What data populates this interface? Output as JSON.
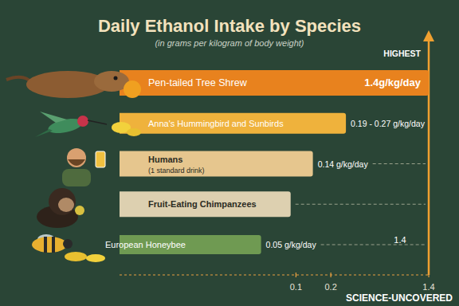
{
  "chart_data": {
    "type": "bar",
    "orientation": "horizontal",
    "title": "Daily Ethanol Intake by Species",
    "subtitle": "(in grams per kilogram of body weight)",
    "categories": [
      "Pen-tailed Tree Shrew",
      "Anna's Hummingbird and Sunbirds",
      "Humans",
      "Fruit-Eating Chimpanzees",
      "European Honeybee"
    ],
    "category_notes": [
      null,
      null,
      "(1 standard drink)",
      null,
      null
    ],
    "values": [
      1.4,
      0.27,
      0.14,
      0.09,
      0.05
    ],
    "value_labels": [
      "1.4g/kg/day",
      "0.19 - 0.27 g/kg/day",
      "0.14 g/kg/day",
      null,
      "0.05 g/kg/day"
    ],
    "colors": [
      "#e8821e",
      "#efb23c",
      "#e6c68e",
      "#ddd0b0",
      "#6f9a52"
    ],
    "log": "x",
    "xlim": [
      0.003,
      1.4
    ],
    "xticks": [
      0.1,
      0.2,
      1.4
    ],
    "data_labels": true,
    "annotations": [
      "HIGHEST",
      "1.4"
    ],
    "source": "SCIENCE-UNCOVERED"
  }
}
